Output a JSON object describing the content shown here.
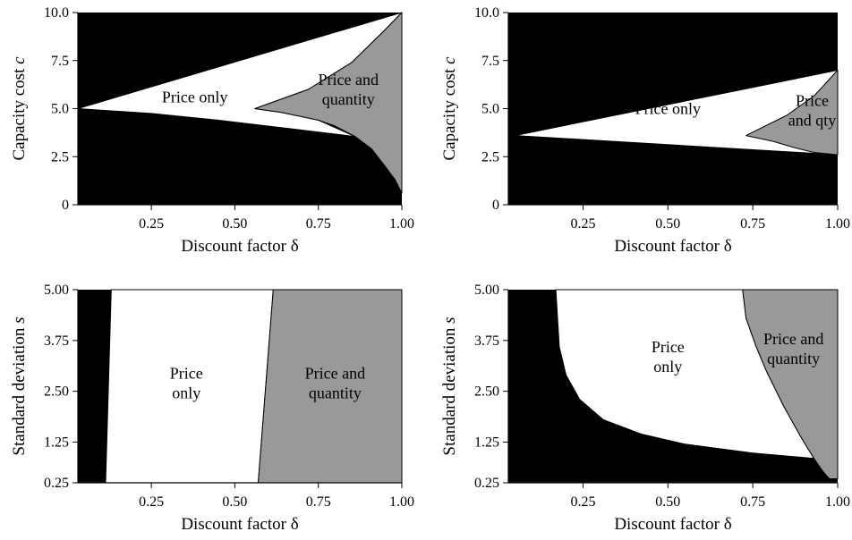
{
  "colors": {
    "background": "#ffffff",
    "black_region": "#000000",
    "white_region": "#ffffff",
    "gray_region": "#999999",
    "axis": "#000000"
  },
  "chart_data": [
    {
      "type": "area",
      "panel": "top-left",
      "xlabel": "Discount factor δ",
      "ylabel_main": "Capacity cost ",
      "ylabel_var": "c",
      "xlim": [
        0.03,
        1.0
      ],
      "ylim": [
        0,
        10
      ],
      "xticks": [
        0.25,
        0.5,
        0.75,
        1.0
      ],
      "xtick_labels": [
        "0.25",
        "0.50",
        "0.75",
        "1.00"
      ],
      "yticks": [
        0,
        2.5,
        5.0,
        7.5,
        10.0
      ],
      "ytick_labels": [
        "0",
        "2.5",
        "5.0",
        "7.5",
        "10.0"
      ],
      "regions": [
        {
          "name": "Price only",
          "fill": "white",
          "points": [
            [
              0.03,
              5.0
            ],
            [
              1.0,
              10.0
            ],
            [
              0.95,
              9.1
            ],
            [
              0.85,
              7.4
            ],
            [
              0.72,
              6.0
            ],
            [
              0.56,
              5.0
            ],
            [
              0.64,
              4.8
            ],
            [
              0.75,
              4.4
            ],
            [
              0.86,
              3.55
            ],
            [
              0.67,
              3.95
            ],
            [
              0.45,
              4.4
            ],
            [
              0.25,
              4.75
            ],
            [
              0.03,
              5.0
            ]
          ]
        },
        {
          "name": "Price and quantity",
          "fill": "gray",
          "points": [
            [
              0.56,
              5.0
            ],
            [
              0.72,
              6.0
            ],
            [
              0.85,
              7.4
            ],
            [
              0.95,
              9.1
            ],
            [
              1.0,
              10.0
            ],
            [
              1.0,
              0.6
            ],
            [
              0.98,
              1.3
            ],
            [
              0.95,
              2.0
            ],
            [
              0.91,
              2.9
            ],
            [
              0.86,
              3.55
            ],
            [
              0.8,
              4.1
            ],
            [
              0.75,
              4.4
            ],
            [
              0.64,
              4.8
            ],
            [
              0.56,
              5.0
            ]
          ]
        }
      ],
      "labels": [
        {
          "lines": [
            "Price only"
          ],
          "x": 0.38,
          "y": 5.6
        },
        {
          "lines": [
            "Price and",
            "quantity"
          ],
          "x": 0.84,
          "y": 6.0
        }
      ]
    },
    {
      "type": "area",
      "panel": "top-right",
      "xlabel": "Discount factor δ",
      "ylabel_main": "Capacity cost ",
      "ylabel_var": "c",
      "xlim": [
        0.03,
        1.0
      ],
      "ylim": [
        0,
        10
      ],
      "xticks": [
        0.25,
        0.5,
        0.75,
        1.0
      ],
      "xtick_labels": [
        "0.25",
        "0.50",
        "0.75",
        "1.00"
      ],
      "yticks": [
        0,
        2.5,
        5.0,
        7.5,
        10.0
      ],
      "ytick_labels": [
        "0",
        "2.5",
        "5.0",
        "7.5",
        "10.0"
      ],
      "regions": [
        {
          "name": "Price only",
          "fill": "white",
          "points": [
            [
              0.05,
              3.6
            ],
            [
              1.0,
              7.0
            ],
            [
              1.0,
              2.6
            ],
            [
              0.05,
              3.6
            ]
          ]
        },
        {
          "name": "Price and qty",
          "fill": "gray",
          "points": [
            [
              0.73,
              3.6
            ],
            [
              0.85,
              4.65
            ],
            [
              0.93,
              5.65
            ],
            [
              1.0,
              7.0
            ],
            [
              1.0,
              2.6
            ],
            [
              0.93,
              2.72
            ],
            [
              0.87,
              2.98
            ],
            [
              0.81,
              3.3
            ],
            [
              0.73,
              3.6
            ]
          ]
        }
      ],
      "labels": [
        {
          "lines": [
            "Price only"
          ],
          "x": 0.5,
          "y": 5.0
        },
        {
          "lines": [
            "Price",
            "and qty"
          ],
          "x": 0.925,
          "y": 4.9
        }
      ]
    },
    {
      "type": "area",
      "panel": "bottom-left",
      "xlabel": "Discount factor δ",
      "ylabel_main": "Standard deviation ",
      "ylabel_var": "s",
      "xlim": [
        0.03,
        1.0
      ],
      "ylim": [
        0.25,
        5.0
      ],
      "xticks": [
        0.25,
        0.5,
        0.75,
        1.0
      ],
      "xtick_labels": [
        "0.25",
        "0.50",
        "0.75",
        "1.00"
      ],
      "yticks": [
        0.25,
        1.25,
        2.5,
        3.75,
        5.0
      ],
      "ytick_labels": [
        "0.25",
        "1.25",
        "2.50",
        "3.75",
        "5.00"
      ],
      "regions": [
        {
          "name": "Price only",
          "fill": "white",
          "points": [
            [
              0.113,
              0.25
            ],
            [
              0.13,
              5.0
            ],
            [
              0.615,
              5.0
            ],
            [
              0.57,
              0.25
            ]
          ]
        },
        {
          "name": "Price and quantity",
          "fill": "gray",
          "points": [
            [
              0.57,
              0.25
            ],
            [
              0.615,
              5.0
            ],
            [
              1.0,
              5.0
            ],
            [
              1.0,
              0.25
            ]
          ]
        }
      ],
      "labels": [
        {
          "lines": [
            "Price",
            "only"
          ],
          "x": 0.355,
          "y": 2.7
        },
        {
          "lines": [
            "Price and",
            "quantity"
          ],
          "x": 0.8,
          "y": 2.7
        }
      ]
    },
    {
      "type": "area",
      "panel": "bottom-right",
      "xlabel": "Discount factor δ",
      "ylabel_main": "Standard deviation ",
      "ylabel_var": "s",
      "xlim": [
        0.03,
        1.0
      ],
      "ylim": [
        0.25,
        5.0
      ],
      "xticks": [
        0.25,
        0.5,
        0.75,
        1.0
      ],
      "xtick_labels": [
        "0.25",
        "0.50",
        "0.75",
        "1.00"
      ],
      "yticks": [
        0.25,
        1.25,
        2.5,
        3.75,
        5.0
      ],
      "ytick_labels": [
        "0.25",
        "1.25",
        "2.50",
        "3.75",
        "5.00"
      ],
      "regions": [
        {
          "name": "Price only",
          "fill": "white",
          "points": [
            [
              0.17,
              5.0
            ],
            [
              0.72,
              5.0
            ],
            [
              0.73,
              4.3
            ],
            [
              0.76,
              3.6
            ],
            [
              0.79,
              3.0
            ],
            [
              0.84,
              2.15
            ],
            [
              0.89,
              1.4
            ],
            [
              0.93,
              0.85
            ],
            [
              0.75,
              0.98
            ],
            [
              0.55,
              1.2
            ],
            [
              0.42,
              1.45
            ],
            [
              0.31,
              1.8
            ],
            [
              0.24,
              2.3
            ],
            [
              0.2,
              2.9
            ],
            [
              0.18,
              3.6
            ]
          ]
        },
        {
          "name": "Price and quantity",
          "fill": "gray",
          "points": [
            [
              0.72,
              5.0
            ],
            [
              1.0,
              5.0
            ],
            [
              1.0,
              0.35
            ],
            [
              0.975,
              0.35
            ],
            [
              0.955,
              0.55
            ],
            [
              0.93,
              0.85
            ],
            [
              0.89,
              1.4
            ],
            [
              0.84,
              2.15
            ],
            [
              0.79,
              3.0
            ],
            [
              0.76,
              3.6
            ],
            [
              0.73,
              4.3
            ]
          ]
        }
      ],
      "labels": [
        {
          "lines": [
            "Price",
            "only"
          ],
          "x": 0.5,
          "y": 3.35
        },
        {
          "lines": [
            "Price and",
            "quantity"
          ],
          "x": 0.87,
          "y": 3.55
        }
      ]
    }
  ]
}
